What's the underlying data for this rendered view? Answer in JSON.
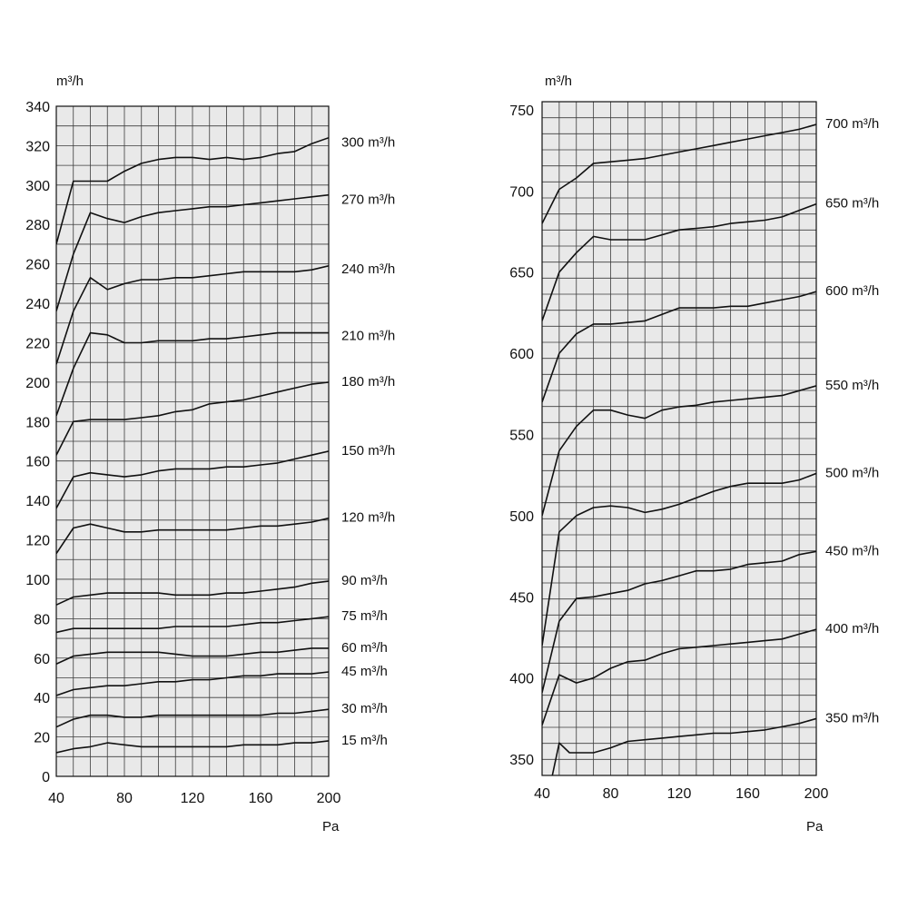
{
  "chart_data": [
    {
      "type": "line",
      "title": "",
      "xlabel": "Pa",
      "ylabel": "m³/h",
      "xlim": [
        40,
        200
      ],
      "ylim": [
        0,
        340
      ],
      "xticks": [
        40,
        80,
        120,
        160,
        200
      ],
      "yticks": [
        0,
        20,
        40,
        60,
        80,
        100,
        120,
        140,
        160,
        180,
        200,
        220,
        240,
        260,
        280,
        300,
        320,
        340
      ],
      "grid": true,
      "series": [
        {
          "name": "15 m³/h",
          "x": [
            40,
            50,
            60,
            70,
            80,
            90,
            100,
            110,
            120,
            130,
            140,
            150,
            160,
            170,
            180,
            190,
            200
          ],
          "y": [
            12,
            14,
            15,
            17,
            16,
            15,
            15,
            15,
            15,
            15,
            15,
            16,
            16,
            16,
            17,
            17,
            18
          ]
        },
        {
          "name": "30 m³/h",
          "x": [
            40,
            50,
            60,
            70,
            80,
            90,
            100,
            110,
            120,
            130,
            140,
            150,
            160,
            170,
            180,
            190,
            200
          ],
          "y": [
            25,
            29,
            31,
            31,
            30,
            30,
            31,
            31,
            31,
            31,
            31,
            31,
            31,
            32,
            32,
            33,
            34
          ]
        },
        {
          "name": "45 m³/h",
          "x": [
            40,
            50,
            60,
            70,
            80,
            90,
            100,
            110,
            120,
            130,
            140,
            150,
            160,
            170,
            180,
            190,
            200
          ],
          "y": [
            41,
            44,
            45,
            46,
            46,
            47,
            48,
            48,
            49,
            49,
            50,
            51,
            51,
            52,
            52,
            52,
            53
          ]
        },
        {
          "name": "60 m³/h",
          "x": [
            40,
            50,
            60,
            70,
            80,
            90,
            100,
            110,
            120,
            130,
            140,
            150,
            160,
            170,
            180,
            190,
            200
          ],
          "y": [
            57,
            61,
            62,
            63,
            63,
            63,
            63,
            62,
            61,
            61,
            61,
            62,
            63,
            63,
            64,
            65,
            65
          ]
        },
        {
          "name": "75 m³/h",
          "x": [
            40,
            50,
            60,
            70,
            80,
            90,
            100,
            110,
            120,
            130,
            140,
            150,
            160,
            170,
            180,
            190,
            200
          ],
          "y": [
            73,
            75,
            75,
            75,
            75,
            75,
            75,
            76,
            76,
            76,
            76,
            77,
            78,
            78,
            79,
            80,
            81
          ]
        },
        {
          "name": "90 m³/h",
          "x": [
            40,
            50,
            60,
            70,
            80,
            90,
            100,
            110,
            120,
            130,
            140,
            150,
            160,
            170,
            180,
            190,
            200
          ],
          "y": [
            87,
            91,
            92,
            93,
            93,
            93,
            93,
            92,
            92,
            92,
            93,
            93,
            94,
            95,
            96,
            98,
            99
          ]
        },
        {
          "name": "120 m³/h",
          "x": [
            40,
            50,
            60,
            70,
            80,
            90,
            100,
            110,
            120,
            130,
            140,
            150,
            160,
            170,
            180,
            190,
            200
          ],
          "y": [
            113,
            126,
            128,
            126,
            124,
            124,
            125,
            125,
            125,
            125,
            125,
            126,
            127,
            127,
            128,
            129,
            131
          ]
        },
        {
          "name": "150 m³/h",
          "x": [
            40,
            50,
            60,
            70,
            80,
            90,
            100,
            110,
            120,
            130,
            140,
            150,
            160,
            170,
            180,
            190,
            200
          ],
          "y": [
            136,
            152,
            154,
            153,
            152,
            153,
            155,
            156,
            156,
            156,
            157,
            157,
            158,
            159,
            161,
            163,
            165
          ]
        },
        {
          "name": "180 m³/h",
          "x": [
            40,
            50,
            60,
            70,
            80,
            90,
            100,
            110,
            120,
            130,
            140,
            150,
            160,
            170,
            180,
            190,
            200
          ],
          "y": [
            163,
            180,
            181,
            181,
            181,
            182,
            183,
            185,
            186,
            189,
            190,
            191,
            193,
            195,
            197,
            199,
            200
          ]
        },
        {
          "name": "210 m³/h",
          "x": [
            40,
            50,
            60,
            70,
            80,
            90,
            100,
            110,
            120,
            130,
            140,
            150,
            160,
            170,
            180,
            190,
            200
          ],
          "y": [
            183,
            207,
            225,
            224,
            220,
            220,
            221,
            221,
            221,
            222,
            222,
            223,
            224,
            225,
            225,
            225,
            225
          ]
        },
        {
          "name": "240 m³/h",
          "x": [
            40,
            50,
            60,
            70,
            80,
            90,
            100,
            110,
            120,
            130,
            140,
            150,
            160,
            170,
            180,
            190,
            200
          ],
          "y": [
            209,
            236,
            253,
            247,
            250,
            252,
            252,
            253,
            253,
            254,
            255,
            256,
            256,
            256,
            256,
            257,
            259
          ]
        },
        {
          "name": "270 m³/h",
          "x": [
            40,
            50,
            60,
            70,
            80,
            90,
            100,
            110,
            120,
            130,
            140,
            150,
            160,
            170,
            180,
            190,
            200
          ],
          "y": [
            236,
            265,
            286,
            283,
            281,
            284,
            286,
            287,
            288,
            289,
            289,
            290,
            291,
            292,
            293,
            294,
            295
          ]
        },
        {
          "name": "300 m³/h",
          "x": [
            40,
            50,
            60,
            70,
            80,
            90,
            100,
            110,
            120,
            130,
            140,
            150,
            160,
            170,
            180,
            190,
            200
          ],
          "y": [
            270,
            302,
            302,
            302,
            307,
            311,
            313,
            314,
            314,
            313,
            314,
            313,
            314,
            316,
            317,
            321,
            324
          ]
        }
      ]
    },
    {
      "type": "line",
      "title": "",
      "xlabel": "Pa",
      "ylabel": "m³/h",
      "xlim": [
        40,
        200
      ],
      "ylim": [
        340,
        755
      ],
      "xticks": [
        40,
        80,
        120,
        160,
        200
      ],
      "yticks": [
        350,
        400,
        450,
        500,
        550,
        600,
        650,
        700,
        750
      ],
      "grid": true,
      "series": [
        {
          "name": "350 m³/h",
          "x": [
            40,
            46,
            50,
            56,
            60,
            70,
            80,
            90,
            100,
            110,
            120,
            130,
            140,
            150,
            160,
            170,
            180,
            190,
            200
          ],
          "y": [
            330,
            340,
            360,
            354,
            354,
            354,
            357,
            361,
            362,
            363,
            364,
            365,
            366,
            366,
            367,
            368,
            370,
            372,
            375
          ]
        },
        {
          "name": "400 m³/h",
          "x": [
            40,
            50,
            60,
            70,
            80,
            90,
            100,
            110,
            120,
            130,
            140,
            150,
            160,
            170,
            180,
            190,
            200
          ],
          "y": [
            371,
            402,
            397,
            400,
            406,
            410,
            411,
            415,
            418,
            419,
            420,
            421,
            422,
            423,
            424,
            427,
            430
          ]
        },
        {
          "name": "450 m³/h",
          "x": [
            40,
            50,
            60,
            70,
            80,
            90,
            100,
            110,
            120,
            130,
            140,
            150,
            160,
            170,
            180,
            190,
            200
          ],
          "y": [
            391,
            435,
            449,
            450,
            452,
            454,
            458,
            460,
            463,
            466,
            466,
            467,
            470,
            471,
            472,
            476,
            478
          ]
        },
        {
          "name": "500 m³/h",
          "x": [
            40,
            50,
            60,
            70,
            80,
            90,
            100,
            110,
            120,
            130,
            140,
            150,
            160,
            170,
            180,
            190,
            200
          ],
          "y": [
            420,
            490,
            500,
            505,
            506,
            505,
            502,
            504,
            507,
            511,
            515,
            518,
            520,
            520,
            520,
            522,
            526
          ]
        },
        {
          "name": "550 m³/h",
          "x": [
            40,
            50,
            60,
            70,
            80,
            90,
            100,
            110,
            120,
            130,
            140,
            150,
            160,
            170,
            180,
            190,
            200
          ],
          "y": [
            500,
            540,
            555,
            565,
            565,
            562,
            560,
            565,
            567,
            568,
            570,
            571,
            572,
            573,
            574,
            577,
            580
          ]
        },
        {
          "name": "600 m³/h",
          "x": [
            40,
            50,
            60,
            70,
            80,
            90,
            100,
            110,
            120,
            130,
            140,
            150,
            160,
            170,
            180,
            190,
            200
          ],
          "y": [
            570,
            600,
            612,
            618,
            618,
            619,
            620,
            624,
            628,
            628,
            628,
            629,
            629,
            631,
            633,
            635,
            638
          ]
        },
        {
          "name": "650 m³/h",
          "x": [
            40,
            50,
            60,
            70,
            80,
            90,
            100,
            110,
            120,
            130,
            140,
            150,
            160,
            170,
            180,
            190,
            200
          ],
          "y": [
            620,
            650,
            662,
            672,
            670,
            670,
            670,
            673,
            676,
            677,
            678,
            680,
            681,
            682,
            684,
            688,
            692
          ]
        },
        {
          "name": "700 m³/h",
          "x": [
            40,
            50,
            60,
            70,
            80,
            90,
            100,
            110,
            120,
            130,
            140,
            150,
            160,
            170,
            180,
            190,
            200
          ],
          "y": [
            680,
            701,
            708,
            717,
            718,
            719,
            720,
            722,
            724,
            726,
            728,
            730,
            732,
            734,
            736,
            738,
            741
          ]
        }
      ]
    }
  ]
}
